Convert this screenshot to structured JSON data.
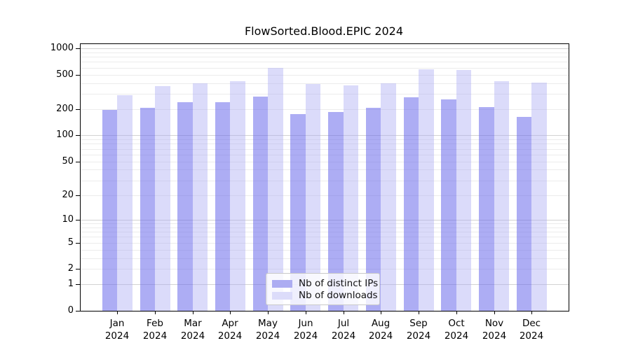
{
  "header": {
    "title": "FlowSorted.Blood.EPIC 2024"
  },
  "legend": {
    "items": [
      {
        "label": "Nb of distinct IPs",
        "swatch_color": "#acacf2"
      },
      {
        "label": "Nb of downloads",
        "swatch_color": "#dcdcfa"
      }
    ]
  },
  "chart_data": {
    "type": "bar",
    "title": "FlowSorted.Blood.EPIC 2024",
    "categories": [
      "Jan 2024",
      "Feb 2024",
      "Mar 2024",
      "Apr 2024",
      "May 2024",
      "Jun 2024",
      "Jul 2024",
      "Aug 2024",
      "Sep 2024",
      "Oct 2024",
      "Nov 2024",
      "Dec 2024"
    ],
    "series": [
      {
        "name": "Nb of distinct IPs",
        "fill_color": "rgba(105,105,235,0.55)",
        "solid_color": "#acacf2",
        "values": [
          198,
          208,
          242,
          242,
          279,
          175,
          186,
          209,
          276,
          258,
          213,
          162
        ]
      },
      {
        "name": "Nb of downloads",
        "fill_color": "rgba(170,170,243,0.42)",
        "solid_color": "#dcdcfa",
        "values": [
          290,
          370,
          396,
          423,
          597,
          393,
          377,
          398,
          570,
          560,
          423,
          408
        ]
      }
    ],
    "y_axis": {
      "scale": "log10(1+x)",
      "tick_labels": [
        1000,
        500,
        200,
        100,
        50,
        20,
        10,
        5,
        2,
        1,
        0
      ],
      "ylim": [
        0,
        1000
      ]
    },
    "grid": {
      "on": true,
      "major_values": [
        1,
        10,
        100,
        1000
      ],
      "minor_values": [
        2,
        3,
        4,
        5,
        6,
        7,
        8,
        9,
        20,
        30,
        40,
        50,
        60,
        70,
        80,
        90,
        200,
        300,
        400,
        500,
        600,
        700,
        800,
        900
      ],
      "major_color": "#d2d2d2",
      "minor_color": "#ececec"
    },
    "legend_position": "inside-bottom-center",
    "xlabel": "",
    "ylabel": ""
  }
}
